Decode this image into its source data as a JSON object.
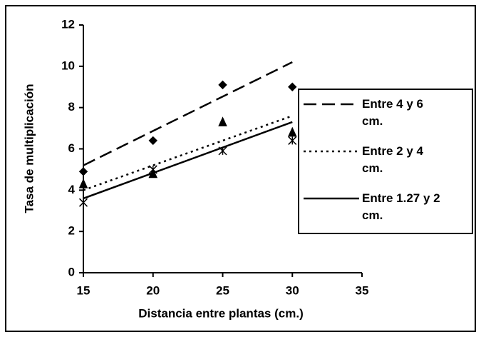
{
  "chart_data": {
    "type": "scatter",
    "xlabel": "Distancia entre plantas (cm.)",
    "ylabel": "Tasa de multiplicación",
    "xlim": [
      15,
      35
    ],
    "xticks": [
      15,
      20,
      25,
      30,
      35
    ],
    "ylim": [
      0,
      12
    ],
    "yticks": [
      0,
      2,
      4,
      6,
      8,
      10,
      12
    ],
    "x": [
      15,
      20,
      25,
      30
    ],
    "trend_x": [
      15,
      30
    ],
    "legend": "right",
    "series": [
      {
        "name": "Entre 4 y 6 cm.",
        "color": "#000000",
        "marker": "diamond",
        "line": "dashed",
        "values": [
          4.9,
          6.4,
          9.1,
          9.0
        ],
        "trend": [
          5.2,
          10.2
        ]
      },
      {
        "name": "Entre 2 y 4 cm.",
        "color": "#000000",
        "marker": "triangle",
        "line": "dotted",
        "values": [
          4.3,
          4.8,
          7.3,
          6.8
        ],
        "trend": [
          4.0,
          7.6
        ]
      },
      {
        "name": "Entre 1.27 y 2 cm.",
        "color": "#000000",
        "marker": "asterisk",
        "line": "solid",
        "values": [
          3.4,
          5.0,
          5.9,
          6.4
        ],
        "trend": [
          3.6,
          7.3
        ]
      }
    ]
  }
}
